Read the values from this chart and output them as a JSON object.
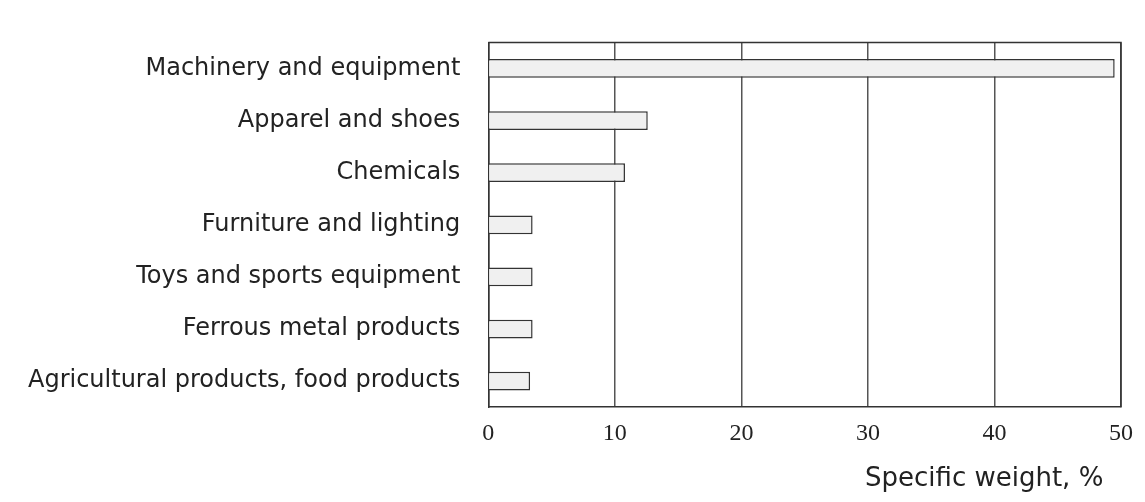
{
  "chart_data": {
    "type": "bar",
    "orientation": "horizontal",
    "xlabel": "Specific weight, %",
    "categories": [
      "Machinery and equipment",
      "Apparel and shoes",
      "Chemicals",
      "Furniture and lighting",
      "Toys and sports equipment",
      "Ferrous metal products",
      "Agricultural products, food products"
    ],
    "values": [
      49.5,
      12.6,
      10.8,
      3.5,
      3.5,
      3.5,
      3.3
    ],
    "color": "#f0f0f0",
    "xlim": [
      0,
      50
    ],
    "xticks": [
      0,
      10,
      20,
      30,
      40,
      50
    ],
    "grid": "x",
    "legend": false
  }
}
